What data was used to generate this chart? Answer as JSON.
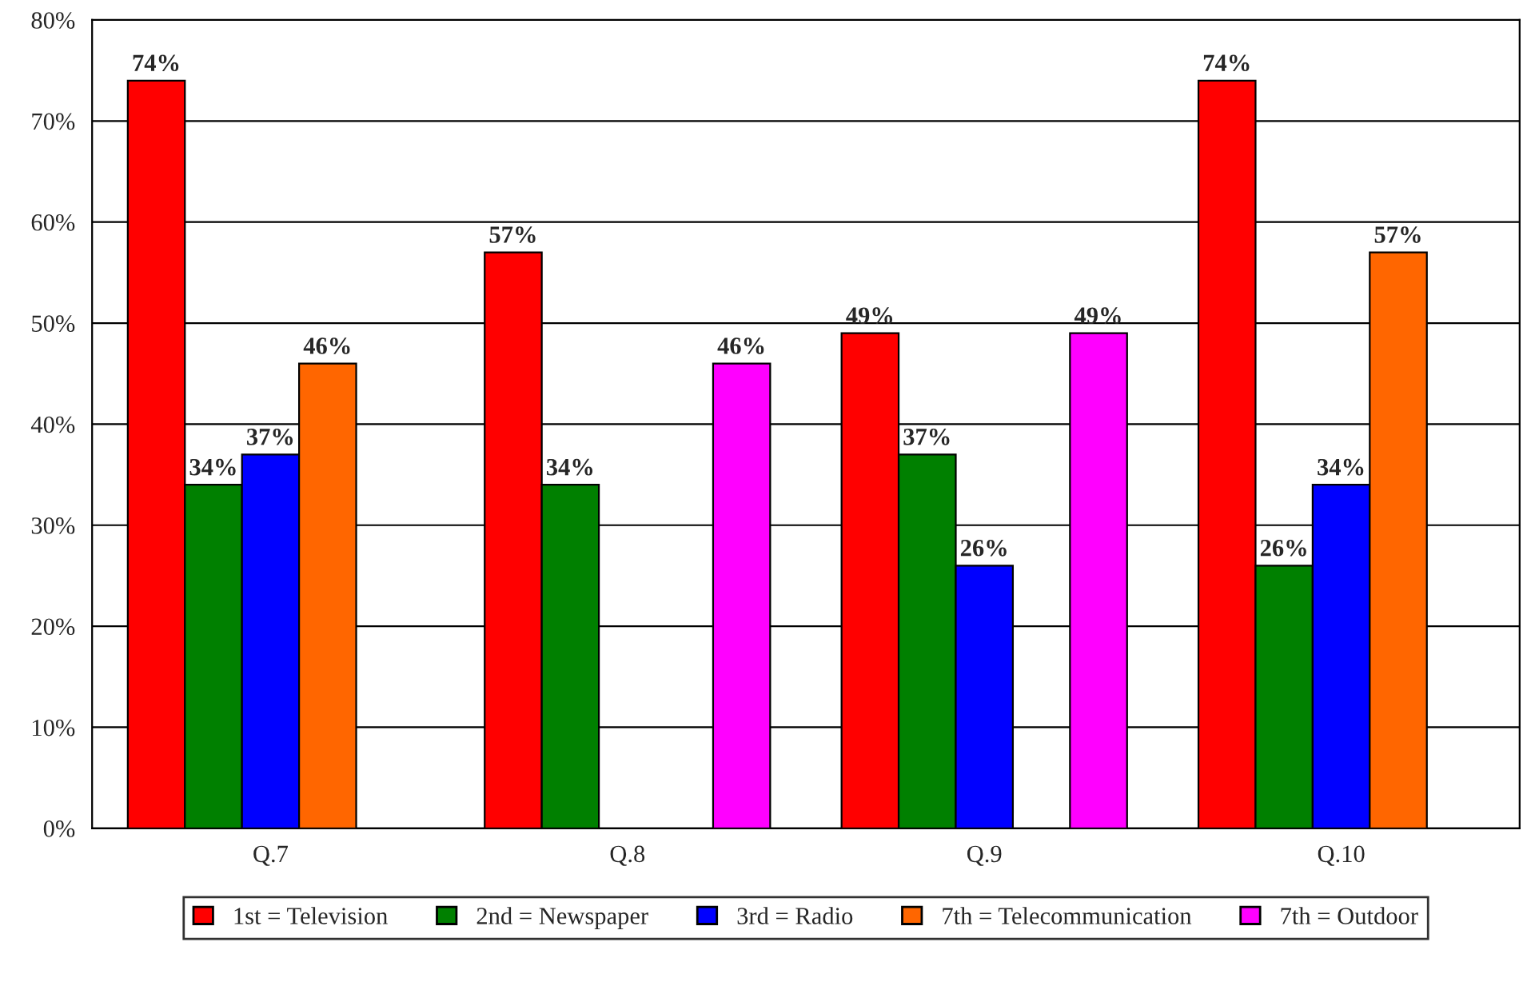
{
  "chart_data": {
    "type": "bar",
    "categories": [
      "Q.7",
      "Q.8",
      "Q.9",
      "Q.10"
    ],
    "series": [
      {
        "name": "1st = Television",
        "color": "#ff0000",
        "values": [
          74,
          57,
          49,
          74
        ],
        "value_labels": [
          "74%",
          "57%",
          "49%",
          "74%"
        ]
      },
      {
        "name": "2nd = Newspaper",
        "color": "#008000",
        "values": [
          34,
          34,
          37,
          26
        ],
        "value_labels": [
          "34%",
          "34%",
          "37%",
          "26%"
        ]
      },
      {
        "name": "3rd = Radio",
        "color": "#0000ff",
        "values": [
          37,
          null,
          26,
          34
        ],
        "value_labels": [
          "37%",
          null,
          "26%",
          "34%"
        ]
      },
      {
        "name": "7th = Telecommunication",
        "color": "#ff6600",
        "values": [
          46,
          null,
          null,
          57
        ],
        "value_labels": [
          "46%",
          null,
          null,
          "57%"
        ]
      },
      {
        "name": "7th = Outdoor",
        "color": "#ff00ff",
        "values": [
          null,
          46,
          49,
          null
        ],
        "value_labels": [
          null,
          "46%",
          "49%",
          null
        ]
      }
    ],
    "ylim": [
      0,
      80
    ],
    "yticks": [
      {
        "value": 0,
        "label": "0%"
      },
      {
        "value": 10,
        "label": "10%"
      },
      {
        "value": 20,
        "label": "20%"
      },
      {
        "value": 30,
        "label": "30%"
      },
      {
        "value": 40,
        "label": "40%"
      },
      {
        "value": 50,
        "label": "50%"
      },
      {
        "value": 60,
        "label": "60%"
      },
      {
        "value": 70,
        "label": "70%"
      },
      {
        "value": 80,
        "label": "80%"
      }
    ],
    "grid": "y",
    "legend": "bottom"
  }
}
